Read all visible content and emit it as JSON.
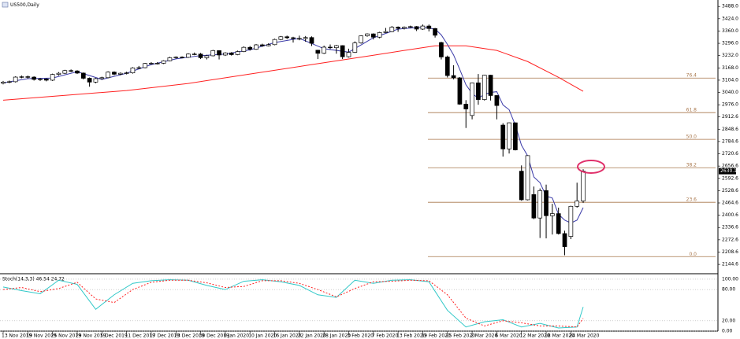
{
  "chart_data": {
    "type": "candlestick",
    "title": "US500,Daily",
    "categories": [
      "13 Nov 2019",
      null,
      null,
      null,
      "19 Nov 2019",
      null,
      null,
      null,
      "25 Nov 2019",
      null,
      null,
      null,
      "29 Nov 2019",
      null,
      null,
      null,
      "5 Dec 2019",
      null,
      null,
      null,
      "11 Dec 2019",
      null,
      null,
      null,
      "17 Dec 2019",
      null,
      null,
      null,
      "23 Dec 2019",
      null,
      null,
      null,
      "30 Dec 2019",
      null,
      null,
      null,
      "6 Jan 2020",
      null,
      null,
      null,
      "10 Jan 2020",
      null,
      null,
      null,
      "16 Jan 2020",
      null,
      null,
      null,
      "22 Jan 2020",
      null,
      null,
      null,
      "28 Jan 2020",
      null,
      null,
      null,
      "3 Feb 2020",
      null,
      null,
      null,
      "7 Feb 2020",
      null,
      null,
      null,
      "13 Feb 2020",
      null,
      null,
      null,
      "19 Feb 2020",
      null,
      null,
      null,
      "25 Feb 2020",
      null,
      null,
      null,
      "2 Mar 2020",
      null,
      null,
      null,
      "6 Mar 2020",
      null,
      null,
      null,
      "12 Mar 2020",
      null,
      null,
      null,
      "18 Mar 2020",
      null,
      null,
      null,
      "24 Mar 2020",
      null,
      null
    ],
    "open": [
      3088,
      3094,
      3096,
      3120,
      3122,
      3120,
      3108,
      3110,
      3104,
      3134,
      3140,
      3154,
      3152,
      3141,
      3114,
      3094,
      3112,
      3117,
      3146,
      3135,
      3140,
      3142,
      3168,
      3169,
      3191,
      3192,
      3192,
      3205,
      3221,
      3224,
      3223,
      3240,
      3240,
      3221,
      3231,
      3258,
      3235,
      3246,
      3237,
      3253,
      3275,
      3265,
      3288,
      3283,
      3289,
      3316,
      3330,
      3325,
      3321,
      3321,
      3326,
      3260,
      3244,
      3276,
      3273,
      3284,
      3226,
      3249,
      3298,
      3335,
      3345,
      3328,
      3352,
      3357,
      3380,
      3374,
      3380,
      3383,
      3370,
      3386,
      3373,
      3300,
      3225,
      3128,
      3116,
      2979,
      2920,
      3090,
      3003,
      3130,
      3024,
      2870,
      2746,
      2882,
      2630,
      2481,
      2508,
      2386,
      2529,
      2398,
      2409,
      2305,
      2290,
      2447,
      2475
    ],
    "high": [
      3100,
      3102,
      3124,
      3128,
      3128,
      3124,
      3116,
      3114,
      3138,
      3146,
      3158,
      3160,
      3156,
      3144,
      3118,
      3116,
      3122,
      3150,
      3150,
      3144,
      3148,
      3172,
      3178,
      3194,
      3198,
      3198,
      3208,
      3226,
      3228,
      3228,
      3244,
      3248,
      3246,
      3236,
      3262,
      3260,
      3250,
      3250,
      3258,
      3280,
      3282,
      3292,
      3294,
      3296,
      3320,
      3334,
      3336,
      3330,
      3336,
      3334,
      3332,
      3262,
      3284,
      3290,
      3288,
      3286,
      3268,
      3306,
      3338,
      3348,
      3348,
      3356,
      3376,
      3386,
      3384,
      3384,
      3388,
      3386,
      3394,
      3394,
      3376,
      3304,
      3232,
      3182,
      3120,
      3000,
      3092,
      3136,
      3132,
      3132,
      3026,
      2880,
      2884,
      2884,
      2660,
      2712,
      2550,
      2540,
      2560,
      2460,
      2440,
      2320,
      2450,
      2570,
      2640
    ],
    "low": [
      3082,
      3088,
      3092,
      3114,
      3112,
      3102,
      3100,
      3098,
      3100,
      3128,
      3136,
      3146,
      3136,
      3108,
      3070,
      3088,
      3106,
      3114,
      3130,
      3130,
      3134,
      3138,
      3162,
      3166,
      3186,
      3186,
      3188,
      3202,
      3216,
      3218,
      3220,
      3234,
      3214,
      3212,
      3228,
      3212,
      3230,
      3232,
      3234,
      3250,
      3258,
      3262,
      3278,
      3280,
      3286,
      3312,
      3318,
      3300,
      3312,
      3304,
      3282,
      3214,
      3240,
      3266,
      3242,
      3214,
      3222,
      3246,
      3294,
      3330,
      3316,
      3322,
      3350,
      3354,
      3356,
      3368,
      3376,
      3360,
      3366,
      3358,
      3326,
      3212,
      3118,
      3108,
      2976,
      2855,
      2900,
      2976,
      2998,
      2998,
      2900,
      2706,
      2722,
      2738,
      2476,
      2478,
      2380,
      2282,
      2280,
      2300,
      2300,
      2192,
      2276,
      2440,
      2465
    ],
    "close": [
      3094,
      3096,
      3120,
      3122,
      3120,
      3108,
      3110,
      3104,
      3134,
      3140,
      3154,
      3152,
      3141,
      3114,
      3094,
      3112,
      3117,
      3146,
      3135,
      3140,
      3142,
      3168,
      3169,
      3191,
      3192,
      3192,
      3205,
      3221,
      3224,
      3223,
      3240,
      3240,
      3221,
      3231,
      3258,
      3235,
      3246,
      3237,
      3253,
      3275,
      3265,
      3288,
      3283,
      3289,
      3316,
      3330,
      3325,
      3321,
      3321,
      3326,
      3296,
      3244,
      3276,
      3273,
      3284,
      3226,
      3249,
      3298,
      3335,
      3345,
      3328,
      3352,
      3357,
      3380,
      3374,
      3380,
      3383,
      3370,
      3386,
      3373,
      3338,
      3225,
      3128,
      3116,
      2979,
      2954,
      3090,
      3003,
      3130,
      3024,
      2972,
      2746,
      2882,
      2741,
      2481,
      2711,
      2386,
      2529,
      2398,
      2409,
      2305,
      2237,
      2447,
      2475,
      2630.1
    ],
    "up_color": "#ffffff",
    "down_color": "#000000",
    "ylim": [
      2100,
      3521.6
    ],
    "yticks": [
      {
        "value": 3488,
        "label": "3488.0"
      },
      {
        "value": 3424,
        "label": "3424.0"
      },
      {
        "value": 3360,
        "label": "3360.0"
      },
      {
        "value": 3296,
        "label": "3296.0"
      },
      {
        "value": 3232,
        "label": "3232.0"
      },
      {
        "value": 3168,
        "label": "3168.0"
      },
      {
        "value": 3104,
        "label": "3104.0"
      },
      {
        "value": 3040,
        "label": "3040.0"
      },
      {
        "value": 2976,
        "label": "2976.0"
      },
      2912.6,
      2848.6,
      2784.6,
      2720.6,
      2656.6,
      2592.6,
      2528.6,
      2464.6,
      2400.6,
      2336.6,
      2272.6,
      2208.6,
      2144.6
    ],
    "moving_averages": [
      {
        "color": "#ff2020",
        "x": [
          0,
          10,
          20,
          30,
          40,
          50,
          60,
          65,
          70,
          75,
          80,
          85,
          90,
          94
        ],
        "values": [
          3000,
          3025,
          3050,
          3087,
          3136,
          3185,
          3234,
          3259,
          3283,
          3283,
          3259,
          3201,
          3119,
          3046
        ]
      },
      {
        "color": "#3a3aa8",
        "x": [
          0,
          4,
          8,
          12,
          16,
          20,
          24,
          28,
          32,
          36,
          40,
          44,
          48,
          52,
          56,
          60,
          64,
          68,
          70,
          71,
          72,
          73,
          74,
          75,
          76,
          77,
          78,
          79,
          80,
          81,
          82,
          83,
          84,
          85,
          86,
          87,
          88,
          89,
          90,
          91,
          92,
          93,
          94
        ],
        "values": [
          3090,
          3112,
          3115,
          3148,
          3108,
          3140,
          3185,
          3215,
          3232,
          3240,
          3262,
          3300,
          3322,
          3268,
          3250,
          3325,
          3370,
          3380,
          3370,
          3340,
          3290,
          3235,
          3160,
          3080,
          3035,
          3010,
          3030,
          3040,
          3044,
          2975,
          2950,
          2870,
          2765,
          2710,
          2600,
          2570,
          2500,
          2490,
          2405,
          2375,
          2360,
          2375,
          2440
        ]
      }
    ],
    "fib_color": "#a8764a",
    "fib_levels": [
      {
        "value": 3115,
        "label": "76.4"
      },
      {
        "value": 2935,
        "label": "61.8"
      },
      {
        "value": 2796,
        "label": "50.0"
      },
      {
        "value": 2648,
        "label": "38.2"
      },
      {
        "value": 2468,
        "label": "23.6"
      },
      {
        "value": 2185,
        "label": "0.0"
      }
    ],
    "stochastic": {
      "title": "Stoch(14,3,3) 46.54 24.72",
      "ylim": [
        0,
        109
      ],
      "yticks": [
        {
          "value": 100,
          "label": "100.00"
        },
        {
          "value": 80,
          "label": "80.00"
        },
        {
          "value": 20,
          "label": "20.00"
        },
        {
          "value": 0,
          "label": "0.00"
        }
      ],
      "series": [
        {
          "color": "#30c8c8",
          "dash": false,
          "x": [
            0,
            3,
            6,
            9,
            12,
            15,
            18,
            21,
            24,
            27,
            30,
            33,
            36,
            39,
            42,
            45,
            48,
            51,
            54,
            57,
            60,
            63,
            66,
            69,
            72,
            75,
            78,
            81,
            84,
            87,
            90,
            93,
            94
          ],
          "values": [
            85,
            78,
            72,
            98,
            90,
            42,
            70,
            92,
            97,
            99,
            98,
            88,
            80,
            96,
            99,
            95,
            88,
            70,
            65,
            98,
            92,
            98,
            99,
            95,
            40,
            8,
            18,
            22,
            8,
            15,
            6,
            8,
            46.54
          ]
        },
        {
          "color": "#ff2020",
          "dash": true,
          "x": [
            0,
            3,
            6,
            9,
            12,
            15,
            18,
            21,
            24,
            27,
            30,
            33,
            36,
            39,
            42,
            45,
            48,
            51,
            54,
            57,
            60,
            63,
            66,
            69,
            72,
            75,
            78,
            81,
            84,
            87,
            90,
            93,
            94
          ],
          "values": [
            80,
            84,
            76,
            82,
            94,
            62,
            55,
            80,
            94,
            98,
            98,
            93,
            84,
            86,
            97,
            97,
            92,
            80,
            66,
            82,
            95,
            96,
            98,
            97,
            70,
            25,
            10,
            20,
            16,
            10,
            10,
            8,
            24.72
          ]
        }
      ]
    }
  }
}
